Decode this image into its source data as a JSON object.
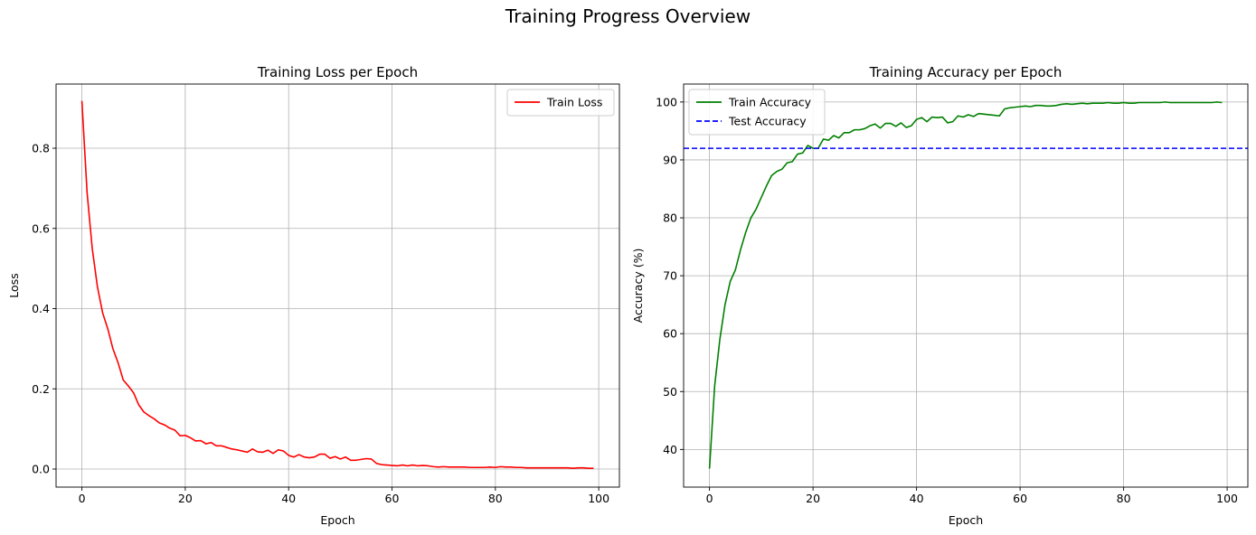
{
  "suptitle": "Training Progress Overview",
  "chart_data": [
    {
      "type": "line",
      "title": "Training Loss per Epoch",
      "xlabel": "Epoch",
      "ylabel": "Loss",
      "xlim": [
        -5,
        104
      ],
      "ylim": [
        -0.045,
        0.96
      ],
      "xticks": [
        0,
        20,
        40,
        60,
        80,
        100
      ],
      "xtick_labels": [
        "0",
        "20",
        "40",
        "60",
        "80",
        "100"
      ],
      "yticks": [
        0,
        0.2,
        0.4,
        0.6,
        0.8
      ],
      "ytick_labels": [
        "0.0",
        "0.2",
        "0.4",
        "0.6",
        "0.8"
      ],
      "grid": true,
      "legend_position": "upper right",
      "series": [
        {
          "name": "Train Loss",
          "color": "#ff0000",
          "style": "solid",
          "x": [
            0,
            1,
            2,
            3,
            4,
            5,
            6,
            7,
            8,
            9,
            10,
            11,
            12,
            13,
            14,
            15,
            16,
            17,
            18,
            19,
            20,
            21,
            22,
            23,
            24,
            25,
            26,
            27,
            28,
            29,
            30,
            31,
            32,
            33,
            34,
            35,
            36,
            37,
            38,
            39,
            40,
            41,
            42,
            43,
            44,
            45,
            46,
            47,
            48,
            49,
            50,
            51,
            52,
            53,
            54,
            55,
            56,
            57,
            58,
            59,
            60,
            61,
            62,
            63,
            64,
            65,
            66,
            67,
            68,
            69,
            70,
            71,
            72,
            73,
            74,
            75,
            76,
            77,
            78,
            79,
            80,
            81,
            82,
            83,
            84,
            85,
            86,
            87,
            88,
            89,
            90,
            91,
            92,
            93,
            94,
            95,
            96,
            97,
            98,
            99
          ],
          "values": [
            0.918,
            0.69,
            0.55,
            0.455,
            0.39,
            0.35,
            0.3,
            0.265,
            0.222,
            0.207,
            0.19,
            0.16,
            0.142,
            0.133,
            0.125,
            0.115,
            0.11,
            0.102,
            0.097,
            0.083,
            0.084,
            0.078,
            0.07,
            0.071,
            0.063,
            0.066,
            0.058,
            0.058,
            0.054,
            0.05,
            0.048,
            0.045,
            0.042,
            0.05,
            0.043,
            0.042,
            0.047,
            0.039,
            0.048,
            0.045,
            0.034,
            0.03,
            0.036,
            0.03,
            0.028,
            0.03,
            0.037,
            0.037,
            0.027,
            0.031,
            0.025,
            0.03,
            0.022,
            0.022,
            0.024,
            0.026,
            0.025,
            0.014,
            0.011,
            0.01,
            0.009,
            0.008,
            0.01,
            0.008,
            0.01,
            0.008,
            0.009,
            0.008,
            0.006,
            0.005,
            0.006,
            0.005,
            0.005,
            0.005,
            0.005,
            0.004,
            0.004,
            0.004,
            0.004,
            0.005,
            0.004,
            0.006,
            0.005,
            0.005,
            0.004,
            0.004,
            0.003,
            0.003,
            0.003,
            0.003,
            0.003,
            0.003,
            0.003,
            0.003,
            0.003,
            0.002,
            0.003,
            0.003,
            0.002,
            0.002
          ]
        }
      ]
    },
    {
      "type": "line",
      "title": "Training Accuracy per Epoch",
      "xlabel": "Epoch",
      "ylabel": "Accuracy (%)",
      "xlim": [
        -5,
        104
      ],
      "ylim": [
        33.5,
        103.1
      ],
      "xticks": [
        0,
        20,
        40,
        60,
        80,
        100
      ],
      "xtick_labels": [
        "0",
        "20",
        "40",
        "60",
        "80",
        "100"
      ],
      "yticks": [
        40,
        50,
        60,
        70,
        80,
        90,
        100
      ],
      "ytick_labels": [
        "40",
        "50",
        "60",
        "70",
        "80",
        "90",
        "100"
      ],
      "grid": true,
      "legend_position": "upper left",
      "series": [
        {
          "name": "Train Accuracy",
          "color": "#008000",
          "style": "solid",
          "x": [
            0,
            1,
            2,
            3,
            4,
            5,
            6,
            7,
            8,
            9,
            10,
            11,
            12,
            13,
            14,
            15,
            16,
            17,
            18,
            19,
            20,
            21,
            22,
            23,
            24,
            25,
            26,
            27,
            28,
            29,
            30,
            31,
            32,
            33,
            34,
            35,
            36,
            37,
            38,
            39,
            40,
            41,
            42,
            43,
            44,
            45,
            46,
            47,
            48,
            49,
            50,
            51,
            52,
            53,
            54,
            55,
            56,
            57,
            58,
            59,
            60,
            61,
            62,
            63,
            64,
            65,
            66,
            67,
            68,
            69,
            70,
            71,
            72,
            73,
            74,
            75,
            76,
            77,
            78,
            79,
            80,
            81,
            82,
            83,
            84,
            85,
            86,
            87,
            88,
            89,
            90,
            91,
            92,
            93,
            94,
            95,
            96,
            97,
            98,
            99
          ],
          "values": [
            36.7,
            51,
            59,
            65,
            69,
            71,
            74.5,
            77.5,
            80,
            81.5,
            83.5,
            85.5,
            87.3,
            88,
            88.4,
            89.5,
            89.7,
            91,
            91.2,
            92.5,
            92,
            92,
            93.6,
            93.4,
            94.2,
            93.8,
            94.7,
            94.7,
            95.2,
            95.2,
            95.4,
            95.9,
            96.2,
            95.5,
            96.3,
            96.3,
            95.8,
            96.4,
            95.6,
            95.9,
            97,
            97.3,
            96.6,
            97.4,
            97.3,
            97.4,
            96.4,
            96.6,
            97.6,
            97.4,
            97.8,
            97.5,
            98,
            97.9,
            97.8,
            97.7,
            97.6,
            98.8,
            99,
            99.1,
            99.2,
            99.3,
            99.2,
            99.4,
            99.4,
            99.3,
            99.3,
            99.4,
            99.6,
            99.7,
            99.6,
            99.7,
            99.8,
            99.7,
            99.8,
            99.8,
            99.8,
            99.9,
            99.8,
            99.8,
            99.9,
            99.8,
            99.8,
            99.9,
            99.9,
            99.9,
            99.9,
            99.9,
            100,
            99.9,
            99.9,
            99.9,
            99.9,
            99.9,
            99.9,
            99.9,
            99.9,
            99.9,
            100,
            99.9
          ]
        },
        {
          "name": "Test Accuracy",
          "color": "#0000ff",
          "style": "dashed",
          "hline": 92
        }
      ]
    }
  ]
}
